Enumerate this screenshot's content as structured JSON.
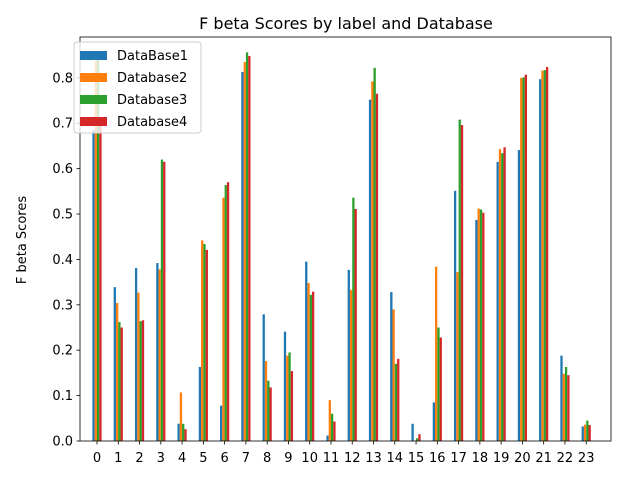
{
  "chart_data": {
    "type": "bar",
    "title": "F beta Scores by label and Database",
    "xlabel": "",
    "ylabel": "F beta Scores",
    "ylim": [
      0,
      0.89
    ],
    "yticks": [
      "0.0",
      "0.1",
      "0.2",
      "0.3",
      "0.4",
      "0.5",
      "0.6",
      "0.7",
      "0.8"
    ],
    "categories": [
      "0",
      "1",
      "2",
      "3",
      "4",
      "5",
      "6",
      "7",
      "8",
      "9",
      "10",
      "11",
      "12",
      "13",
      "14",
      "15",
      "16",
      "17",
      "18",
      "19",
      "20",
      "21",
      "22",
      "23"
    ],
    "grid": false,
    "legend_position": "top-left",
    "series": [
      {
        "name": "DataBase1",
        "color": "#1f77b4",
        "values": [
          0.685,
          0.339,
          0.381,
          0.392,
          0.038,
          0.163,
          0.078,
          0.813,
          0.279,
          0.241,
          0.395,
          0.012,
          0.377,
          0.752,
          0.328,
          0.038,
          0.085,
          0.551,
          0.487,
          0.615,
          0.641,
          0.797,
          0.188,
          0.032
        ]
      },
      {
        "name": "Database2",
        "color": "#ff7f0e",
        "values": [
          0.837,
          0.304,
          0.327,
          0.378,
          0.107,
          0.442,
          0.536,
          0.835,
          0.176,
          0.188,
          0.348,
          0.09,
          0.333,
          0.792,
          0.29,
          0.001,
          0.384,
          0.372,
          0.512,
          0.643,
          0.8,
          0.816,
          0.148,
          0.036
        ]
      },
      {
        "name": "Database3",
        "color": "#2ca02c",
        "values": [
          0.845,
          0.262,
          0.264,
          0.62,
          0.038,
          0.434,
          0.564,
          0.856,
          0.133,
          0.195,
          0.322,
          0.06,
          0.536,
          0.822,
          0.17,
          0.006,
          0.25,
          0.708,
          0.51,
          0.634,
          0.801,
          0.817,
          0.163,
          0.045
        ]
      },
      {
        "name": "Database4",
        "color": "#d62728",
        "values": [
          0.694,
          0.25,
          0.266,
          0.615,
          0.026,
          0.421,
          0.57,
          0.848,
          0.118,
          0.154,
          0.329,
          0.043,
          0.511,
          0.765,
          0.181,
          0.015,
          0.228,
          0.696,
          0.503,
          0.647,
          0.807,
          0.824,
          0.145,
          0.035
        ]
      }
    ]
  }
}
